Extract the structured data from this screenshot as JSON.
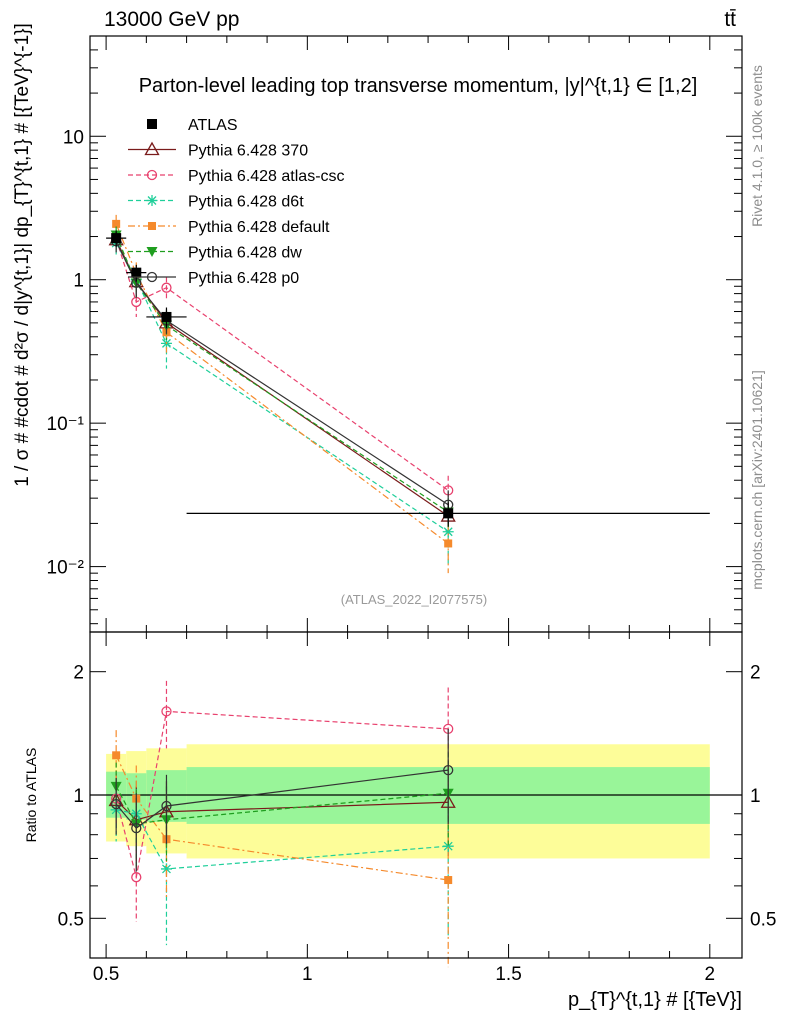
{
  "header": {
    "left": "13000 GeV pp",
    "right": "tt̄"
  },
  "side_labels": {
    "rivet": "Rivet 4.1.0, ≥ 100k events",
    "mcplots": "mcplots.cern.ch [arXiv:2401.10621]"
  },
  "colors": {
    "ATLAS": "#000000",
    "Pythia 6.428 370": "#7a1b1b",
    "Pythia 6.428 atlas-csc": "#e8416e",
    "Pythia 6.428 d6t": "#1fcf9a",
    "Pythia 6.428 default": "#f58a2c",
    "Pythia 6.428 dw": "#1f9e1f",
    "Pythia 6.428 p0": "#333333",
    "band_inner": "#99f599",
    "band_outer": "#fdfd99"
  },
  "chart_data": [
    {
      "type": "line",
      "title": "Parton-level leading top transverse momentum, |y|^{t,1} ∈ [1,2]",
      "ylabel": "1 / σ # #cdot # d²σ / d|y^{t,1}| dp_{T}^{t,1} # [{TeV}^{-1}]",
      "yscale": "log",
      "xlim": [
        0.46,
        2.08
      ],
      "ylim": [
        0.0035,
        50
      ],
      "yticks": [
        {
          "value": 0.01,
          "label": "10⁻²"
        },
        {
          "value": 0.1,
          "label": "10⁻¹"
        },
        {
          "value": 1,
          "label": "1"
        },
        {
          "value": 10,
          "label": "10"
        }
      ],
      "watermark": "(ATLAS_2022_I2077575)",
      "legend_position": "top-left",
      "x": [
        0.525,
        0.575,
        0.65,
        1.35
      ],
      "bins": [
        [
          0.5,
          0.55
        ],
        [
          0.55,
          0.6
        ],
        [
          0.6,
          0.7
        ],
        [
          0.7,
          2.0
        ]
      ],
      "series": [
        {
          "name": "ATLAS",
          "style": "data",
          "values": [
            1.95,
            1.12,
            0.55,
            0.0235
          ],
          "errors": [
            0.25,
            0.15,
            0.09,
            0.0045
          ]
        },
        {
          "name": "Pythia 6.428 370",
          "style": "solid",
          "marker": "triangle-open",
          "values": [
            1.9,
            0.97,
            0.5,
            0.0225
          ],
          "errors": [
            0.28,
            0.2,
            0.1,
            0.006
          ]
        },
        {
          "name": "Pythia 6.428 atlas-csc",
          "style": "dashed",
          "marker": "circle-open",
          "values": [
            1.92,
            0.7,
            0.88,
            0.034
          ],
          "errors": [
            0.3,
            0.15,
            0.16,
            0.009
          ]
        },
        {
          "name": "Pythia 6.428 d6t",
          "style": "dashed",
          "marker": "star",
          "values": [
            1.8,
            1.0,
            0.36,
            0.0175
          ],
          "errors": [
            0.3,
            0.2,
            0.12,
            0.007
          ]
        },
        {
          "name": "Pythia 6.428 default",
          "style": "dashdot",
          "marker": "square",
          "values": [
            2.45,
            1.1,
            0.43,
            0.0145
          ],
          "errors": [
            0.38,
            0.22,
            0.12,
            0.0055
          ]
        },
        {
          "name": "Pythia 6.428 dw",
          "style": "dashed",
          "marker": "triangle-down",
          "values": [
            2.05,
            0.95,
            0.48,
            0.024
          ],
          "errors": [
            0.3,
            0.2,
            0.1,
            0.006
          ]
        },
        {
          "name": "Pythia 6.428 p0",
          "style": "solid",
          "marker": "circle-open",
          "values": [
            1.85,
            0.95,
            0.52,
            0.027
          ],
          "errors": [
            0.3,
            0.2,
            0.1,
            0.007
          ]
        }
      ]
    },
    {
      "type": "line",
      "ylabel": "Ratio to ATLAS",
      "xlabel": "p_{T}^{t,1} # [{TeV}]",
      "yscale": "log",
      "xlim": [
        0.46,
        2.08
      ],
      "ylim": [
        0.4,
        2.5
      ],
      "xticks": [
        {
          "value": 0.5,
          "label": "0.5"
        },
        {
          "value": 1,
          "label": "1"
        },
        {
          "value": 1.5,
          "label": "1.5"
        },
        {
          "value": 2,
          "label": "2"
        }
      ],
      "yticks": [
        {
          "value": 0.5,
          "label": "0.5"
        },
        {
          "value": 1,
          "label": "1"
        },
        {
          "value": 2,
          "label": "2"
        }
      ],
      "bands": {
        "bins": [
          [
            0.5,
            0.55
          ],
          [
            0.55,
            0.6
          ],
          [
            0.6,
            0.7
          ],
          [
            0.7,
            2.0
          ]
        ],
        "inner": [
          [
            0.88,
            1.14
          ],
          [
            0.87,
            1.13
          ],
          [
            0.86,
            1.15
          ],
          [
            0.85,
            1.17
          ]
        ],
        "outer": [
          [
            0.77,
            1.26
          ],
          [
            0.75,
            1.28
          ],
          [
            0.72,
            1.3
          ],
          [
            0.7,
            1.33
          ]
        ]
      },
      "series": [
        {
          "name": "Pythia 6.428 370",
          "values": [
            0.97,
            0.87,
            0.91,
            0.96
          ],
          "errors": [
            0.14,
            0.18,
            0.17,
            0.25
          ]
        },
        {
          "name": "Pythia 6.428 atlas-csc",
          "values": [
            0.98,
            0.63,
            1.6,
            1.45
          ],
          "errors": [
            0.15,
            0.14,
            0.3,
            0.38
          ]
        },
        {
          "name": "Pythia 6.428 d6t",
          "values": [
            0.92,
            0.9,
            0.66,
            0.75
          ],
          "errors": [
            0.15,
            0.18,
            0.23,
            0.3
          ]
        },
        {
          "name": "Pythia 6.428 default",
          "values": [
            1.25,
            0.98,
            0.78,
            0.62
          ],
          "errors": [
            0.19,
            0.2,
            0.22,
            0.24
          ]
        },
        {
          "name": "Pythia 6.428 dw",
          "values": [
            1.05,
            0.85,
            0.87,
            1.01
          ],
          "errors": [
            0.15,
            0.18,
            0.18,
            0.26
          ]
        },
        {
          "name": "Pythia 6.428 p0",
          "values": [
            0.95,
            0.83,
            0.94,
            1.15
          ],
          "errors": [
            0.15,
            0.18,
            0.18,
            0.3
          ]
        }
      ]
    }
  ]
}
